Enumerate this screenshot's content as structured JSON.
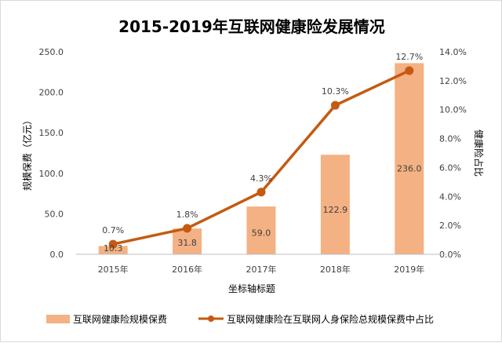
{
  "chart_data": {
    "type": "bar",
    "title": "2015-2019年互联网健康险发展情况",
    "xlabel": "坐标轴标题",
    "ylabel": "规模保费（亿元）",
    "y2label": "健康险占比",
    "categories": [
      "2015年",
      "2016年",
      "2017年",
      "2018年",
      "2019年"
    ],
    "series": [
      {
        "name": "互联网健康险规模保费",
        "type": "bar",
        "axis": "left",
        "values": [
          10.3,
          31.8,
          59.0,
          122.9,
          236.0
        ],
        "labels": [
          "10.3",
          "31.8",
          "59.0",
          "122.9",
          "236.0"
        ],
        "color": "#f4b183"
      },
      {
        "name": "互联网健康险在互联网人身保险总规模保费中占比",
        "type": "line",
        "axis": "right",
        "values": [
          0.7,
          1.8,
          4.3,
          10.3,
          12.7
        ],
        "labels": [
          "0.7%",
          "1.8%",
          "4.3%",
          "10.3%",
          "12.7%"
        ],
        "color": "#c55a11"
      }
    ],
    "ylim": [
      0,
      250
    ],
    "yticks": [
      "0.0",
      "50.0",
      "100.0",
      "150.0",
      "200.0",
      "250.0"
    ],
    "y2lim": [
      0,
      14
    ],
    "y2ticks": [
      "0.0%",
      "2.0%",
      "4.0%",
      "6.0%",
      "8.0%",
      "10.0%",
      "12.0%",
      "14.0%"
    ],
    "grid": false,
    "legend_position": "bottom"
  }
}
